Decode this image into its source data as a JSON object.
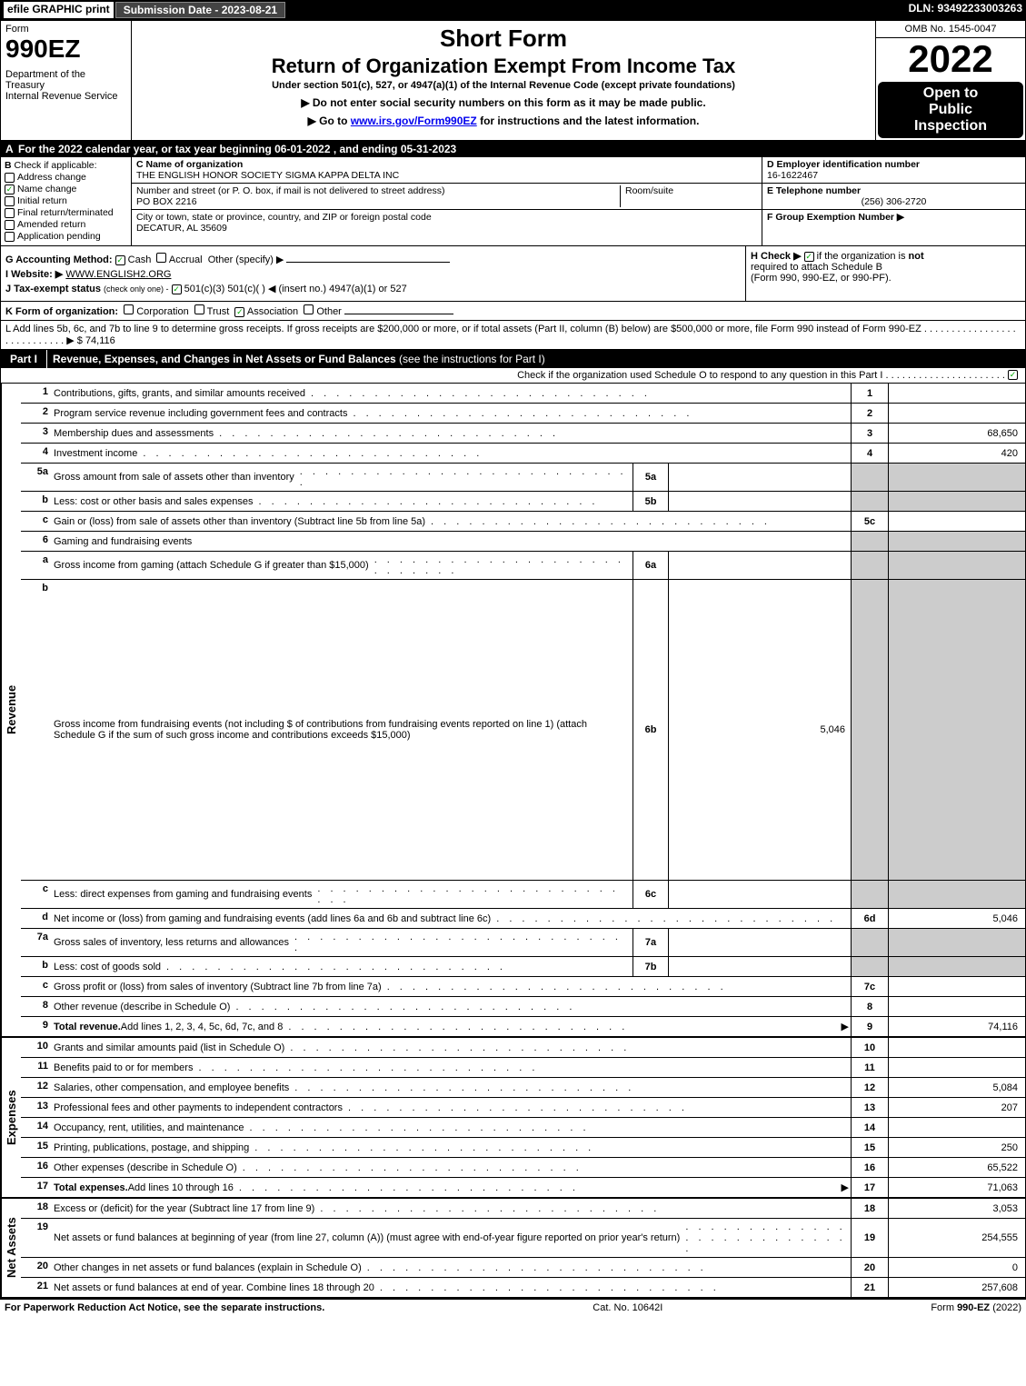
{
  "topbar": {
    "efile": "efile GRAPHIC print",
    "subdate": "Submission Date - 2023-08-21",
    "dln": "DLN: 93492233003263"
  },
  "header": {
    "form_word": "Form",
    "form_num": "990EZ",
    "dept": "Department of the Treasury",
    "irs": "Internal Revenue Service",
    "short_form": "Short Form",
    "title": "Return of Organization Exempt From Income Tax",
    "subtitle": "Under section 501(c), 527, or 4947(a)(1) of the Internal Revenue Code (except private foundations)",
    "warn": "▶ Do not enter social security numbers on this form as it may be made public.",
    "goto": "▶ Go to ",
    "goto_link": "www.irs.gov/Form990EZ",
    "goto_after": " for instructions and the latest information.",
    "omb": "OMB No. 1545-0047",
    "year": "2022",
    "open1": "Open to",
    "open2": "Public",
    "open3": "Inspection"
  },
  "lineA": "For the 2022 calendar year, or tax year beginning 06-01-2022 , and ending 05-31-2023",
  "colB": {
    "label": "Check if applicable:",
    "items": [
      {
        "txt": "Address change",
        "checked": false
      },
      {
        "txt": "Name change",
        "checked": true
      },
      {
        "txt": "Initial return",
        "checked": false
      },
      {
        "txt": "Final return/terminated",
        "checked": false
      },
      {
        "txt": "Amended return",
        "checked": false
      },
      {
        "txt": "Application pending",
        "checked": false
      }
    ]
  },
  "colC": {
    "name_lbl": "C Name of organization",
    "name": "THE ENGLISH HONOR SOCIETY SIGMA KAPPA DELTA INC",
    "street_lbl": "Number and street (or P. O. box, if mail is not delivered to street address)",
    "street": "PO BOX 2216",
    "room_lbl": "Room/suite",
    "room": "",
    "city_lbl": "City or town, state or province, country, and ZIP or foreign postal code",
    "city": "DECATUR, AL  35609"
  },
  "colDEF": {
    "d_lbl": "D Employer identification number",
    "d_val": "16-1622467",
    "e_lbl": "E Telephone number",
    "e_val": "(256) 306-2720",
    "f_lbl": "F Group Exemption Number   ▶",
    "f_val": ""
  },
  "rowG": {
    "lbl": "G Accounting Method:",
    "cash": "Cash",
    "accrual": "Accrual",
    "other": "Other (specify) ▶"
  },
  "rowH": {
    "txt1": "H  Check ▶ ",
    "txt2": " if the organization is ",
    "not": "not",
    "txt3": " required to attach Schedule B",
    "txt4": "(Form 990, 990-EZ, or 990-PF)."
  },
  "rowI": {
    "lbl": "I Website: ▶",
    "val": "WWW.ENGLISH2.ORG"
  },
  "rowJ": {
    "lbl": "J Tax-exempt status",
    "sub": "(check only one) -",
    "opts": "501(c)(3)   501(c)(  ) ◀ (insert no.)   4947(a)(1) or   527"
  },
  "rowK": {
    "lbl": "K Form of organization:",
    "opts": "Corporation   Trust   Association   Other"
  },
  "rowL": {
    "txt": "L Add lines 5b, 6c, and 7b to line 9 to determine gross receipts. If gross receipts are $200,000 or more, or if total assets (Part II, column (B) below) are $500,000 or more, file Form 990 instead of Form 990-EZ . . . . . . . . . . . . . . . . . . . . . . . . . . . . ▶ $ ",
    "val": "74,116"
  },
  "part1": {
    "label": "Part I",
    "title": "Revenue, Expenses, and Changes in Net Assets or Fund Balances",
    "title_sub": " (see the instructions for Part I)",
    "check_line": "Check if the organization used Schedule O to respond to any question in this Part I . . . . . . . . . . . . . . . . . . . . . ."
  },
  "revenue_label": "Revenue",
  "expenses_label": "Expenses",
  "netassets_label": "Net Assets",
  "lines": {
    "l1": {
      "n": "1",
      "d": "Contributions, gifts, grants, and similar amounts received",
      "rn": "1",
      "rv": ""
    },
    "l2": {
      "n": "2",
      "d": "Program service revenue including government fees and contracts",
      "rn": "2",
      "rv": ""
    },
    "l3": {
      "n": "3",
      "d": "Membership dues and assessments",
      "rn": "3",
      "rv": "68,650"
    },
    "l4": {
      "n": "4",
      "d": "Investment income",
      "rn": "4",
      "rv": "420"
    },
    "l5a": {
      "n": "5a",
      "d": "Gross amount from sale of assets other than inventory",
      "sb": "5a",
      "sv": ""
    },
    "l5b": {
      "n": "b",
      "d": "Less: cost or other basis and sales expenses",
      "sb": "5b",
      "sv": ""
    },
    "l5c": {
      "n": "c",
      "d": "Gain or (loss) from sale of assets other than inventory (Subtract line 5b from line 5a)",
      "rn": "5c",
      "rv": ""
    },
    "l6": {
      "n": "6",
      "d": "Gaming and fundraising events"
    },
    "l6a": {
      "n": "a",
      "d": "Gross income from gaming (attach Schedule G if greater than $15,000)",
      "sb": "6a",
      "sv": ""
    },
    "l6b": {
      "n": "b",
      "d": "Gross income from fundraising events (not including $                     of contributions from fundraising events reported on line 1) (attach Schedule G if the sum of such gross income and contributions exceeds $15,000)",
      "sb": "6b",
      "sv": "5,046"
    },
    "l6c": {
      "n": "c",
      "d": "Less: direct expenses from gaming and fundraising events",
      "sb": "6c",
      "sv": ""
    },
    "l6d": {
      "n": "d",
      "d": "Net income or (loss) from gaming and fundraising events (add lines 6a and 6b and subtract line 6c)",
      "rn": "6d",
      "rv": "5,046"
    },
    "l7a": {
      "n": "7a",
      "d": "Gross sales of inventory, less returns and allowances",
      "sb": "7a",
      "sv": ""
    },
    "l7b": {
      "n": "b",
      "d": "Less: cost of goods sold",
      "sb": "7b",
      "sv": ""
    },
    "l7c": {
      "n": "c",
      "d": "Gross profit or (loss) from sales of inventory (Subtract line 7b from line 7a)",
      "rn": "7c",
      "rv": ""
    },
    "l8": {
      "n": "8",
      "d": "Other revenue (describe in Schedule O)",
      "rn": "8",
      "rv": ""
    },
    "l9": {
      "n": "9",
      "d": "Total revenue. Add lines 1, 2, 3, 4, 5c, 6d, 7c, and 8",
      "rn": "9",
      "rv": "74,116",
      "bold": true,
      "arrow": true
    },
    "l10": {
      "n": "10",
      "d": "Grants and similar amounts paid (list in Schedule O)",
      "rn": "10",
      "rv": ""
    },
    "l11": {
      "n": "11",
      "d": "Benefits paid to or for members",
      "rn": "11",
      "rv": ""
    },
    "l12": {
      "n": "12",
      "d": "Salaries, other compensation, and employee benefits",
      "rn": "12",
      "rv": "5,084"
    },
    "l13": {
      "n": "13",
      "d": "Professional fees and other payments to independent contractors",
      "rn": "13",
      "rv": "207"
    },
    "l14": {
      "n": "14",
      "d": "Occupancy, rent, utilities, and maintenance",
      "rn": "14",
      "rv": ""
    },
    "l15": {
      "n": "15",
      "d": "Printing, publications, postage, and shipping",
      "rn": "15",
      "rv": "250"
    },
    "l16": {
      "n": "16",
      "d": "Other expenses (describe in Schedule O)",
      "rn": "16",
      "rv": "65,522"
    },
    "l17": {
      "n": "17",
      "d": "Total expenses. Add lines 10 through 16",
      "rn": "17",
      "rv": "71,063",
      "bold": true,
      "arrow": true
    },
    "l18": {
      "n": "18",
      "d": "Excess or (deficit) for the year (Subtract line 17 from line 9)",
      "rn": "18",
      "rv": "3,053"
    },
    "l19": {
      "n": "19",
      "d": "Net assets or fund balances at beginning of year (from line 27, column (A)) (must agree with end-of-year figure reported on prior year's return)",
      "rn": "19",
      "rv": "254,555"
    },
    "l20": {
      "n": "20",
      "d": "Other changes in net assets or fund balances (explain in Schedule O)",
      "rn": "20",
      "rv": "0"
    },
    "l21": {
      "n": "21",
      "d": "Net assets or fund balances at end of year. Combine lines 18 through 20",
      "rn": "21",
      "rv": "257,608"
    }
  },
  "footer": {
    "left": "For Paperwork Reduction Act Notice, see the separate instructions.",
    "mid": "Cat. No. 10642I",
    "right": "Form 990-EZ (2022)"
  }
}
